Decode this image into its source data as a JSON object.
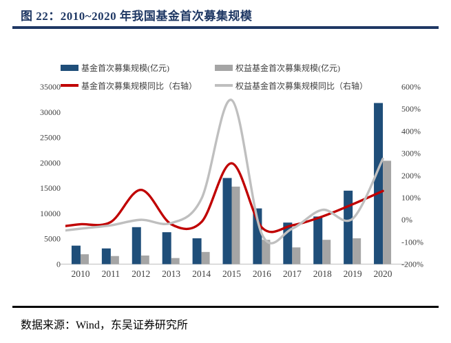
{
  "header": {
    "title": "图 22：2010~2020 年我国基金首次募集规模"
  },
  "footer": {
    "source": "数据来源：Wind，东吴证券研究所"
  },
  "chart_data": {
    "type": "combo-bar-line",
    "categories": [
      "2010",
      "2011",
      "2012",
      "2013",
      "2014",
      "2015",
      "2016",
      "2017",
      "2018",
      "2019",
      "2020"
    ],
    "left_axis": {
      "min": 0,
      "max": 35000,
      "tick_labels": [
        "0",
        "5000",
        "10000",
        "15000",
        "20000",
        "25000",
        "30000",
        "35000"
      ]
    },
    "right_axis": {
      "min": -200,
      "max": 600,
      "tick_labels": [
        "-200%",
        "-100%",
        "0%",
        "100%",
        "200%",
        "300%",
        "400%",
        "500%",
        "600%"
      ]
    },
    "grid": false,
    "legend_position": "top",
    "series": [
      {
        "name": "基金首次募集规模(亿元)",
        "type": "bar",
        "axis": "left",
        "color": "#1F4E79",
        "values": [
          3650,
          3100,
          7300,
          6300,
          5100,
          17000,
          11000,
          8200,
          9400,
          14500,
          31800
        ]
      },
      {
        "name": "权益基金首次募集规模(亿元)",
        "type": "bar",
        "axis": "left",
        "color": "#A5A5A5",
        "values": [
          1950,
          1600,
          1700,
          1200,
          2400,
          15300,
          4800,
          3300,
          4800,
          5100,
          20400
        ]
      },
      {
        "name": "基金首次募集规模同比（右轴）",
        "type": "line",
        "axis": "right",
        "color": "#C00000",
        "edge_value": -28,
        "values": [
          -20,
          -10,
          135,
          -20,
          -10,
          255,
          -35,
          -25,
          15,
          70,
          130
        ]
      },
      {
        "name": "权益基金首次募集规模同比（右轴）",
        "type": "line",
        "axis": "right",
        "color": "#BFBFBF",
        "edge_value": -48,
        "values": [
          -40,
          -25,
          0,
          -15,
          95,
          540,
          -65,
          -40,
          45,
          5,
          275
        ]
      }
    ]
  }
}
